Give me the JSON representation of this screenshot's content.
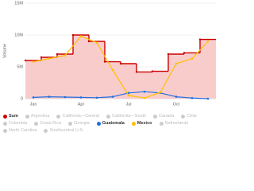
{
  "chart_data": {
    "type": "line",
    "y_label": "Volume",
    "categories": [
      "Jan",
      null,
      null,
      "Apr",
      null,
      null,
      "Jul",
      null,
      null,
      "Oct",
      null,
      null
    ],
    "ylim": [
      0,
      15000000
    ],
    "yticks": [
      {
        "value": 0,
        "label": "0"
      },
      {
        "value": 5000000,
        "label": "5M"
      },
      {
        "value": 10000000,
        "label": "10M"
      },
      {
        "value": 15000000,
        "label": "15M"
      }
    ],
    "grid": true,
    "series": [
      {
        "name": "Sum",
        "color": "#cc0000",
        "fill": "#f9cccc",
        "step": true,
        "visible": true,
        "values": [
          6000000,
          6500000,
          7000000,
          10000000,
          9000000,
          5800000,
          5500000,
          4200000,
          4300000,
          7000000,
          7200000,
          9300000
        ]
      },
      {
        "name": "Argentina",
        "visible": false
      },
      {
        "name": "California—Central",
        "visible": false
      },
      {
        "name": "California—South",
        "visible": false
      },
      {
        "name": "Canada",
        "visible": false
      },
      {
        "name": "Chile",
        "visible": false
      },
      {
        "name": "Colombia",
        "visible": false
      },
      {
        "name": "Costa Rica",
        "visible": false
      },
      {
        "name": "Georgia",
        "visible": false
      },
      {
        "name": "Guatemala",
        "color": "#1f6fe0",
        "visible": true,
        "values": [
          200000,
          300000,
          250000,
          200000,
          150000,
          300000,
          900000,
          1100000,
          900000,
          300000,
          100000,
          0
        ]
      },
      {
        "name": "Mexico",
        "color": "#ffc000",
        "visible": true,
        "values": [
          5800000,
          6300000,
          6800000,
          9800000,
          8800000,
          4500000,
          500000,
          100000,
          1000000,
          5500000,
          6300000,
          9000000
        ]
      },
      {
        "name": "Netherlands",
        "visible": false
      },
      {
        "name": "North Carolina",
        "visible": false
      },
      {
        "name": "Southcentral U.S.",
        "visible": false
      }
    ]
  }
}
